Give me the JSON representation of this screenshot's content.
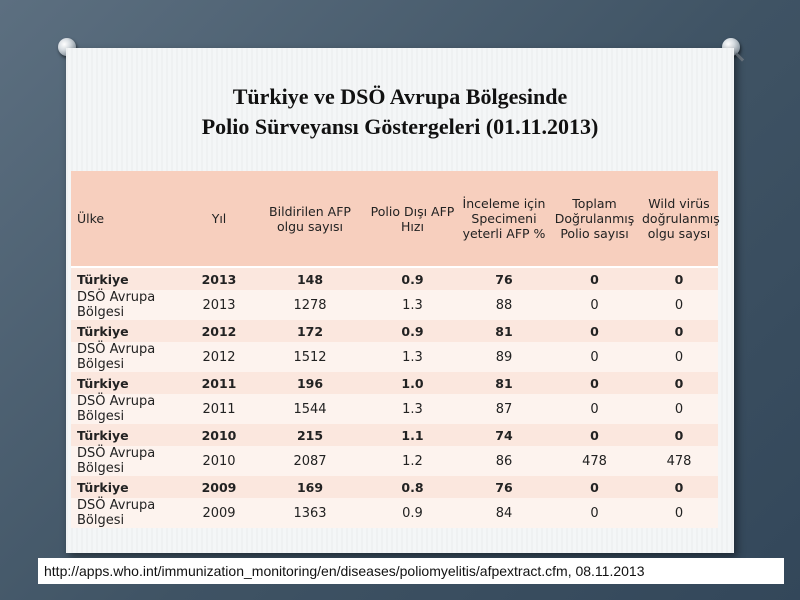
{
  "title": {
    "line1": "Türkiye ve DSÖ Avrupa Bölgesinde",
    "line2": "Polio Sürveyansı Göstergeleri (01.11.2013)"
  },
  "table": {
    "headers": {
      "country": "Ülke",
      "year": "Yıl",
      "reported_afp": "Bildirilen AFP olgu sayısı",
      "nonpolio_afp": "Polio Dışı AFP Hızı",
      "adequate_specimen": "İnceleme için Specimeni yeterli AFP %",
      "confirmed_polio": "Toplam Doğrulanmış Polio sayısı",
      "wild_virus": "Wild virüs doğrulanmış olgu saysı"
    },
    "rows": [
      {
        "country": "Türkiye",
        "year": "2013",
        "reported_afp": "148",
        "nonpolio_afp": "0.9",
        "adequate_specimen": "76",
        "confirmed_polio": "0",
        "wild_virus": "0"
      },
      {
        "country": "DSÖ Avrupa Bölgesi",
        "year": "2013",
        "reported_afp": "1278",
        "nonpolio_afp": "1.3",
        "adequate_specimen": "88",
        "confirmed_polio": "0",
        "wild_virus": "0"
      },
      {
        "country": "Türkiye",
        "year": "2012",
        "reported_afp": "172",
        "nonpolio_afp": "0.9",
        "adequate_specimen": "81",
        "confirmed_polio": "0",
        "wild_virus": "0"
      },
      {
        "country": "DSÖ Avrupa Bölgesi",
        "year": "2012",
        "reported_afp": "1512",
        "nonpolio_afp": "1.3",
        "adequate_specimen": "89",
        "confirmed_polio": "0",
        "wild_virus": "0"
      },
      {
        "country": "Türkiye",
        "year": "2011",
        "reported_afp": "196",
        "nonpolio_afp": "1.0",
        "adequate_specimen": "81",
        "confirmed_polio": "0",
        "wild_virus": "0"
      },
      {
        "country": "DSÖ Avrupa Bölgesi",
        "year": "2011",
        "reported_afp": "1544",
        "nonpolio_afp": "1.3",
        "adequate_specimen": "87",
        "confirmed_polio": "0",
        "wild_virus": "0"
      },
      {
        "country": "Türkiye",
        "year": "2010",
        "reported_afp": "215",
        "nonpolio_afp": "1.1",
        "adequate_specimen": "74",
        "confirmed_polio": "0",
        "wild_virus": "0"
      },
      {
        "country": "DSÖ Avrupa Bölgesi",
        "year": "2010",
        "reported_afp": "2087",
        "nonpolio_afp": "1.2",
        "adequate_specimen": "86",
        "confirmed_polio": "478",
        "wild_virus": "478"
      },
      {
        "country": "Türkiye",
        "year": "2009",
        "reported_afp": "169",
        "nonpolio_afp": "0.8",
        "adequate_specimen": "76",
        "confirmed_polio": "0",
        "wild_virus": "0"
      },
      {
        "country": "DSÖ Avrupa Bölgesi",
        "year": "2009",
        "reported_afp": "1363",
        "nonpolio_afp": "0.9",
        "adequate_specimen": "84",
        "confirmed_polio": "0",
        "wild_virus": "0"
      }
    ]
  },
  "source": "http://apps.who.int/immunization_monitoring/en/diseases/poliomyelitis/afpextract.cfm, 08.11.2013",
  "colors": {
    "header_bg": "#f7cfbe",
    "turkiye_row_bg": "#fbe7de",
    "region_row_bg": "#fdf3ee"
  }
}
